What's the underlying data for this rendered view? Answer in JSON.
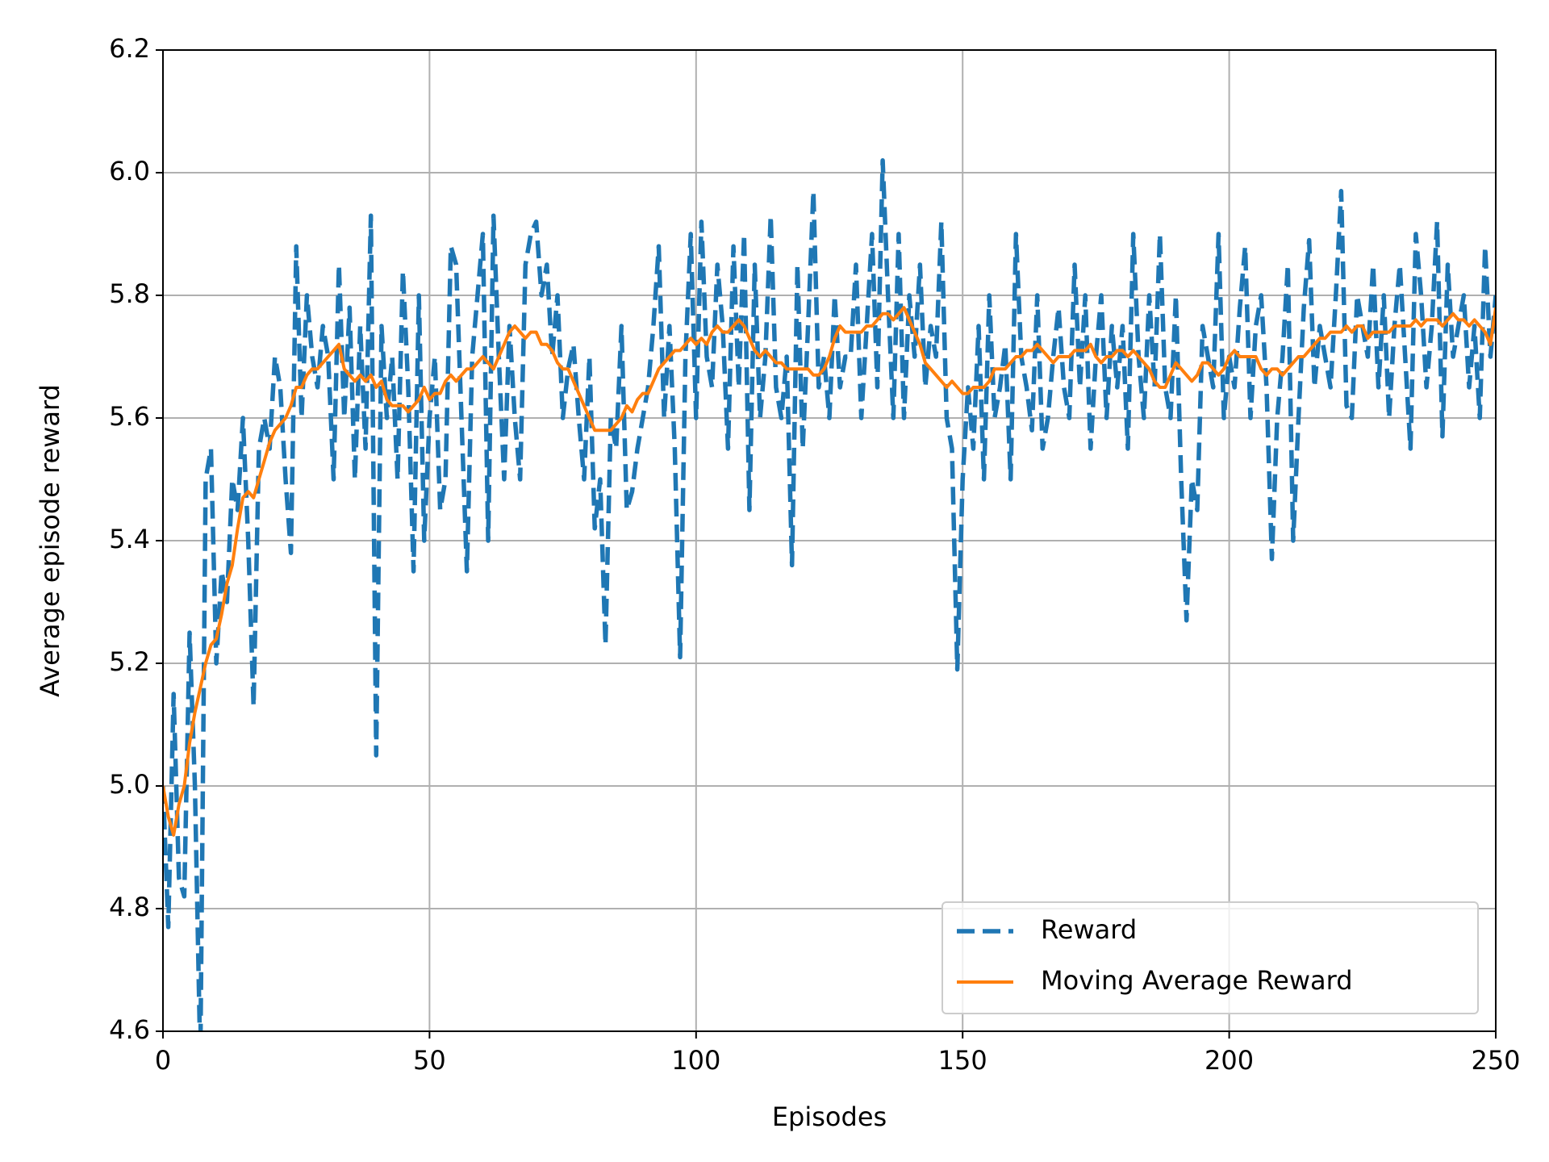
{
  "chart_data": {
    "type": "line",
    "xlabel": "Episodes",
    "ylabel": "Average episode reward",
    "xlim": [
      0,
      250
    ],
    "xticks": [
      0,
      50,
      100,
      150,
      200,
      250
    ],
    "ylim": [
      4.6,
      6.2
    ],
    "yticks": [
      {
        "value": 4.6,
        "label": "4.6"
      },
      {
        "value": 4.8,
        "label": "4.8"
      },
      {
        "value": 5.0,
        "label": "5.0"
      },
      {
        "value": 5.2,
        "label": "5.2"
      },
      {
        "value": 5.4,
        "label": "5.4"
      },
      {
        "value": 5.6,
        "label": "5.6"
      },
      {
        "value": 5.8,
        "label": "5.8"
      },
      {
        "value": 6.0,
        "label": "6.0"
      },
      {
        "value": 6.2,
        "label": "6.2"
      }
    ],
    "grid": true,
    "legend": "lower right",
    "x": [
      0,
      1,
      2,
      3,
      4,
      5,
      6,
      7,
      8,
      9,
      10,
      11,
      12,
      13,
      14,
      15,
      16,
      17,
      18,
      19,
      20,
      21,
      22,
      23,
      24,
      25,
      26,
      27,
      28,
      29,
      30,
      31,
      32,
      33,
      34,
      35,
      36,
      37,
      38,
      39,
      40,
      41,
      42,
      43,
      44,
      45,
      46,
      47,
      48,
      49,
      50,
      51,
      52,
      53,
      54,
      55,
      56,
      57,
      58,
      59,
      60,
      61,
      62,
      63,
      64,
      65,
      66,
      67,
      68,
      69,
      70,
      71,
      72,
      73,
      74,
      75,
      76,
      77,
      78,
      79,
      80,
      81,
      82,
      83,
      84,
      85,
      86,
      87,
      88,
      89,
      90,
      91,
      92,
      93,
      94,
      95,
      96,
      97,
      98,
      99,
      100,
      101,
      102,
      103,
      104,
      105,
      106,
      107,
      108,
      109,
      110,
      111,
      112,
      113,
      114,
      115,
      116,
      117,
      118,
      119,
      120,
      121,
      122,
      123,
      124,
      125,
      126,
      127,
      128,
      129,
      130,
      131,
      132,
      133,
      134,
      135,
      136,
      137,
      138,
      139,
      140,
      141,
      142,
      143,
      144,
      145,
      146,
      147,
      148,
      149,
      150,
      151,
      152,
      153,
      154,
      155,
      156,
      157,
      158,
      159,
      160,
      161,
      162,
      163,
      164,
      165,
      166,
      167,
      168,
      169,
      170,
      171,
      172,
      173,
      174,
      175,
      176,
      177,
      178,
      179,
      180,
      181,
      182,
      183,
      184,
      185,
      186,
      187,
      188,
      189,
      190,
      191,
      192,
      193,
      194,
      195,
      196,
      197,
      198,
      199,
      200,
      201,
      202,
      203,
      204,
      205,
      206,
      207,
      208,
      209,
      210,
      211,
      212,
      213,
      214,
      215,
      216,
      217,
      218,
      219,
      220,
      221,
      222,
      223,
      224,
      225,
      226,
      227,
      228,
      229,
      230,
      231,
      232,
      233,
      234,
      235,
      236,
      237,
      238,
      239,
      240,
      241,
      242,
      243,
      244,
      245,
      246,
      247,
      248,
      249,
      250
    ],
    "series": [
      {
        "name": "Reward",
        "color": "#1f77b4",
        "dashed": true,
        "values": [
          5.0,
          4.77,
          5.15,
          4.85,
          4.82,
          5.25,
          5.0,
          4.55,
          5.5,
          5.55,
          5.2,
          5.35,
          5.3,
          5.5,
          5.45,
          5.6,
          5.4,
          5.13,
          5.55,
          5.6,
          5.55,
          5.7,
          5.65,
          5.5,
          5.38,
          5.88,
          5.6,
          5.8,
          5.7,
          5.65,
          5.75,
          5.7,
          5.5,
          5.85,
          5.6,
          5.78,
          5.5,
          5.75,
          5.55,
          5.93,
          5.05,
          5.75,
          5.6,
          5.7,
          5.5,
          5.84,
          5.65,
          5.35,
          5.8,
          5.4,
          5.6,
          5.7,
          5.45,
          5.5,
          5.88,
          5.85,
          5.6,
          5.35,
          5.7,
          5.8,
          5.9,
          5.4,
          5.93,
          5.7,
          5.5,
          5.75,
          5.6,
          5.5,
          5.85,
          5.9,
          5.92,
          5.8,
          5.85,
          5.7,
          5.8,
          5.6,
          5.68,
          5.72,
          5.6,
          5.5,
          5.7,
          5.42,
          5.5,
          5.23,
          5.6,
          5.55,
          5.75,
          5.45,
          5.48,
          5.55,
          5.6,
          5.65,
          5.75,
          5.88,
          5.6,
          5.75,
          5.55,
          5.21,
          5.7,
          5.9,
          5.6,
          5.92,
          5.7,
          5.65,
          5.85,
          5.75,
          5.55,
          5.88,
          5.65,
          5.9,
          5.45,
          5.85,
          5.6,
          5.7,
          5.93,
          5.65,
          5.6,
          5.7,
          5.36,
          5.85,
          5.55,
          5.75,
          5.97,
          5.65,
          5.7,
          5.6,
          5.8,
          5.65,
          5.7,
          5.7,
          5.85,
          5.6,
          5.75,
          5.9,
          5.65,
          6.02,
          5.8,
          5.6,
          5.9,
          5.6,
          5.8,
          5.7,
          5.85,
          5.65,
          5.75,
          5.7,
          5.92,
          5.6,
          5.55,
          5.19,
          5.5,
          5.65,
          5.55,
          5.75,
          5.5,
          5.8,
          5.6,
          5.65,
          5.72,
          5.5,
          5.9,
          5.7,
          5.65,
          5.58,
          5.8,
          5.55,
          5.6,
          5.7,
          5.78,
          5.65,
          5.6,
          5.85,
          5.65,
          5.8,
          5.55,
          5.7,
          5.8,
          5.6,
          5.75,
          5.65,
          5.75,
          5.55,
          5.9,
          5.7,
          5.6,
          5.8,
          5.65,
          5.9,
          5.65,
          5.6,
          5.8,
          5.5,
          5.27,
          5.5,
          5.45,
          5.75,
          5.7,
          5.65,
          5.9,
          5.6,
          5.7,
          5.65,
          5.78,
          5.88,
          5.6,
          5.75,
          5.8,
          5.65,
          5.37,
          5.6,
          5.7,
          5.85,
          5.4,
          5.6,
          5.78,
          5.89,
          5.65,
          5.75,
          5.7,
          5.65,
          5.8,
          5.97,
          5.62,
          5.6,
          5.8,
          5.75,
          5.7,
          5.85,
          5.65,
          5.8,
          5.6,
          5.75,
          5.85,
          5.7,
          5.55,
          5.9,
          5.8,
          5.65,
          5.75,
          5.92,
          5.57,
          5.85,
          5.7,
          5.75,
          5.8,
          5.65,
          5.75,
          5.6,
          5.88,
          5.7,
          5.8
        ]
      },
      {
        "name": "Moving Average Reward",
        "color": "#ff7f0e",
        "dashed": false,
        "values": [
          5.0,
          4.95,
          4.92,
          4.97,
          5.0,
          5.07,
          5.12,
          5.16,
          5.2,
          5.23,
          5.24,
          5.28,
          5.33,
          5.36,
          5.42,
          5.47,
          5.48,
          5.47,
          5.5,
          5.53,
          5.56,
          5.58,
          5.59,
          5.6,
          5.62,
          5.65,
          5.65,
          5.67,
          5.68,
          5.68,
          5.69,
          5.7,
          5.71,
          5.72,
          5.68,
          5.67,
          5.66,
          5.67,
          5.66,
          5.67,
          5.65,
          5.66,
          5.63,
          5.62,
          5.62,
          5.62,
          5.61,
          5.62,
          5.63,
          5.65,
          5.63,
          5.64,
          5.64,
          5.66,
          5.67,
          5.66,
          5.67,
          5.68,
          5.68,
          5.69,
          5.7,
          5.69,
          5.68,
          5.7,
          5.72,
          5.74,
          5.75,
          5.74,
          5.73,
          5.74,
          5.74,
          5.72,
          5.72,
          5.71,
          5.69,
          5.68,
          5.68,
          5.66,
          5.64,
          5.62,
          5.6,
          5.58,
          5.58,
          5.58,
          5.58,
          5.59,
          5.6,
          5.62,
          5.61,
          5.63,
          5.64,
          5.64,
          5.66,
          5.68,
          5.69,
          5.7,
          5.71,
          5.71,
          5.72,
          5.73,
          5.72,
          5.73,
          5.72,
          5.74,
          5.75,
          5.74,
          5.74,
          5.75,
          5.76,
          5.75,
          5.73,
          5.71,
          5.7,
          5.71,
          5.7,
          5.69,
          5.69,
          5.68,
          5.68,
          5.68,
          5.68,
          5.68,
          5.67,
          5.67,
          5.68,
          5.7,
          5.73,
          5.75,
          5.74,
          5.74,
          5.74,
          5.74,
          5.75,
          5.75,
          5.76,
          5.77,
          5.77,
          5.76,
          5.77,
          5.78,
          5.76,
          5.74,
          5.72,
          5.69,
          5.68,
          5.67,
          5.66,
          5.65,
          5.66,
          5.65,
          5.64,
          5.64,
          5.65,
          5.65,
          5.65,
          5.66,
          5.68,
          5.68,
          5.68,
          5.69,
          5.7,
          5.7,
          5.71,
          5.71,
          5.72,
          5.71,
          5.7,
          5.69,
          5.7,
          5.7,
          5.7,
          5.71,
          5.71,
          5.71,
          5.72,
          5.7,
          5.69,
          5.7,
          5.7,
          5.71,
          5.71,
          5.7,
          5.71,
          5.7,
          5.69,
          5.68,
          5.66,
          5.65,
          5.65,
          5.67,
          5.69,
          5.68,
          5.67,
          5.66,
          5.67,
          5.69,
          5.69,
          5.68,
          5.67,
          5.68,
          5.7,
          5.71,
          5.7,
          5.7,
          5.7,
          5.7,
          5.68,
          5.67,
          5.68,
          5.68,
          5.67,
          5.68,
          5.69,
          5.7,
          5.7,
          5.71,
          5.72,
          5.73,
          5.73,
          5.74,
          5.74,
          5.74,
          5.75,
          5.74,
          5.75,
          5.75,
          5.73,
          5.74,
          5.74,
          5.74,
          5.74,
          5.75,
          5.75,
          5.75,
          5.75,
          5.76,
          5.75,
          5.76,
          5.76,
          5.76,
          5.75,
          5.76,
          5.77,
          5.76,
          5.76,
          5.75,
          5.76,
          5.75,
          5.74,
          5.72,
          5.78
        ]
      }
    ]
  }
}
